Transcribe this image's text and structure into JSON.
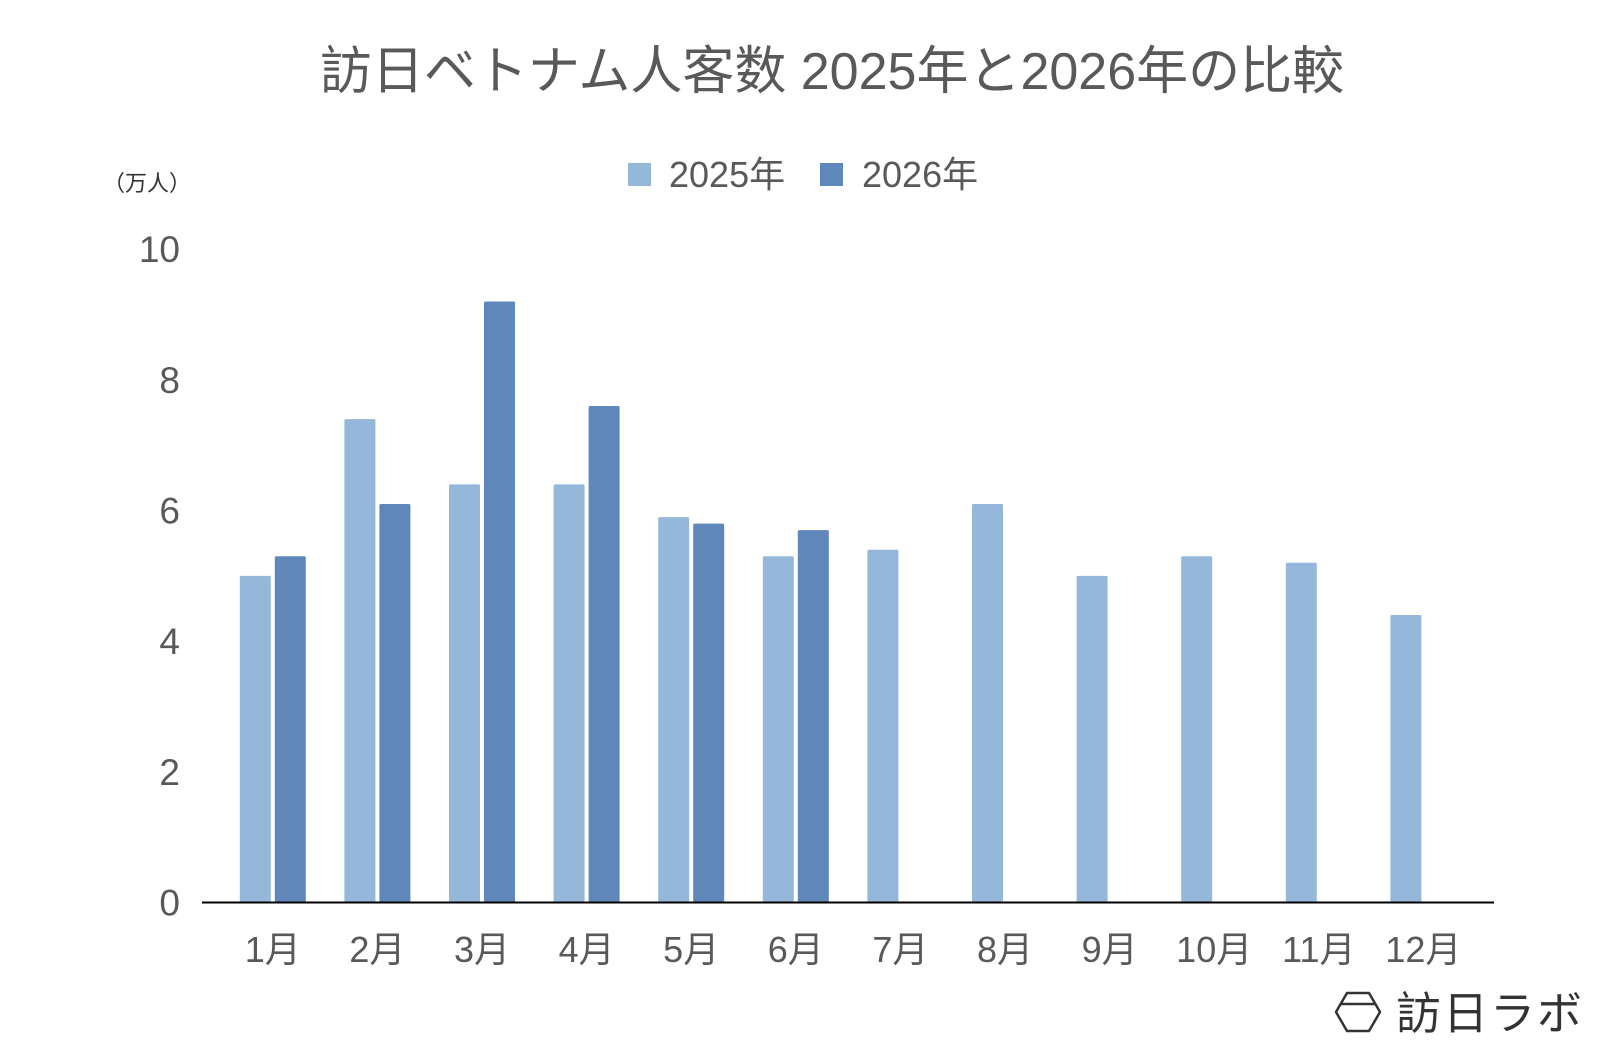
{
  "chart_data": {
    "type": "bar",
    "title": "訪日ベトナム人客数 2025年と2026年の比較",
    "ylabel": "（万人）",
    "categories": [
      "1月",
      "2月",
      "3月",
      "4月",
      "5月",
      "6月",
      "7月",
      "8月",
      "9月",
      "10月",
      "11月",
      "12月"
    ],
    "series": [
      {
        "name": "2025年",
        "color": "#95B8DA",
        "values": [
          5.0,
          7.4,
          6.4,
          6.4,
          5.9,
          5.3,
          5.4,
          6.1,
          5.0,
          5.3,
          5.2,
          4.4
        ]
      },
      {
        "name": "2026年",
        "color": "#5F87BA",
        "values": [
          5.3,
          6.1,
          9.2,
          7.6,
          5.8,
          5.7,
          null,
          null,
          null,
          null,
          null,
          null
        ]
      }
    ],
    "ylim": [
      0,
      10
    ],
    "yticks": [
      0,
      2,
      4,
      6,
      8,
      10
    ],
    "grid": false,
    "legend_position": "top"
  },
  "logo": {
    "text": "訪日ラボ",
    "icon": "hexagon-logo-icon"
  }
}
